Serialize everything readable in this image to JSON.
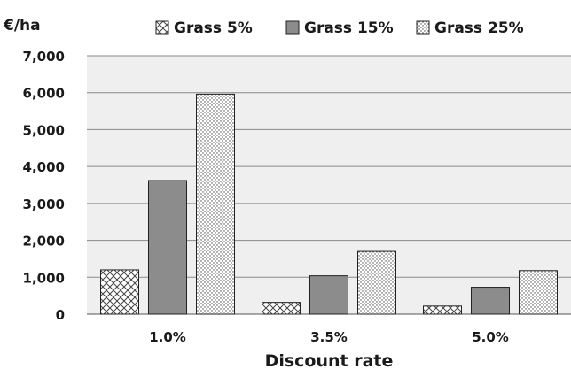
{
  "chart_data": {
    "type": "bar",
    "unit_label": "€/ha",
    "xlabel": "Discount rate",
    "ylabel": "",
    "categories": [
      "1.0%",
      "3.5%",
      "5.0%"
    ],
    "ylim": [
      0,
      7000
    ],
    "yticks": [
      "0",
      "1,000",
      "2,000",
      "3,000",
      "4,000",
      "5,000",
      "6,000",
      "7,000"
    ],
    "grid": true,
    "legend_position": "top",
    "series": [
      {
        "name": "Grass 5%",
        "pattern": "crosshatch",
        "color": "#ffffff",
        "values": [
          1200,
          320,
          220
        ]
      },
      {
        "name": "Grass 15%",
        "pattern": "solid",
        "color": "#8c8c8c",
        "values": [
          3620,
          1040,
          730
        ]
      },
      {
        "name": "Grass 25%",
        "pattern": "dots",
        "color": "#ffffff",
        "values": [
          5960,
          1700,
          1180
        ]
      }
    ],
    "plot_background": "#efefef",
    "gridline_color": "#8a8a8a"
  }
}
